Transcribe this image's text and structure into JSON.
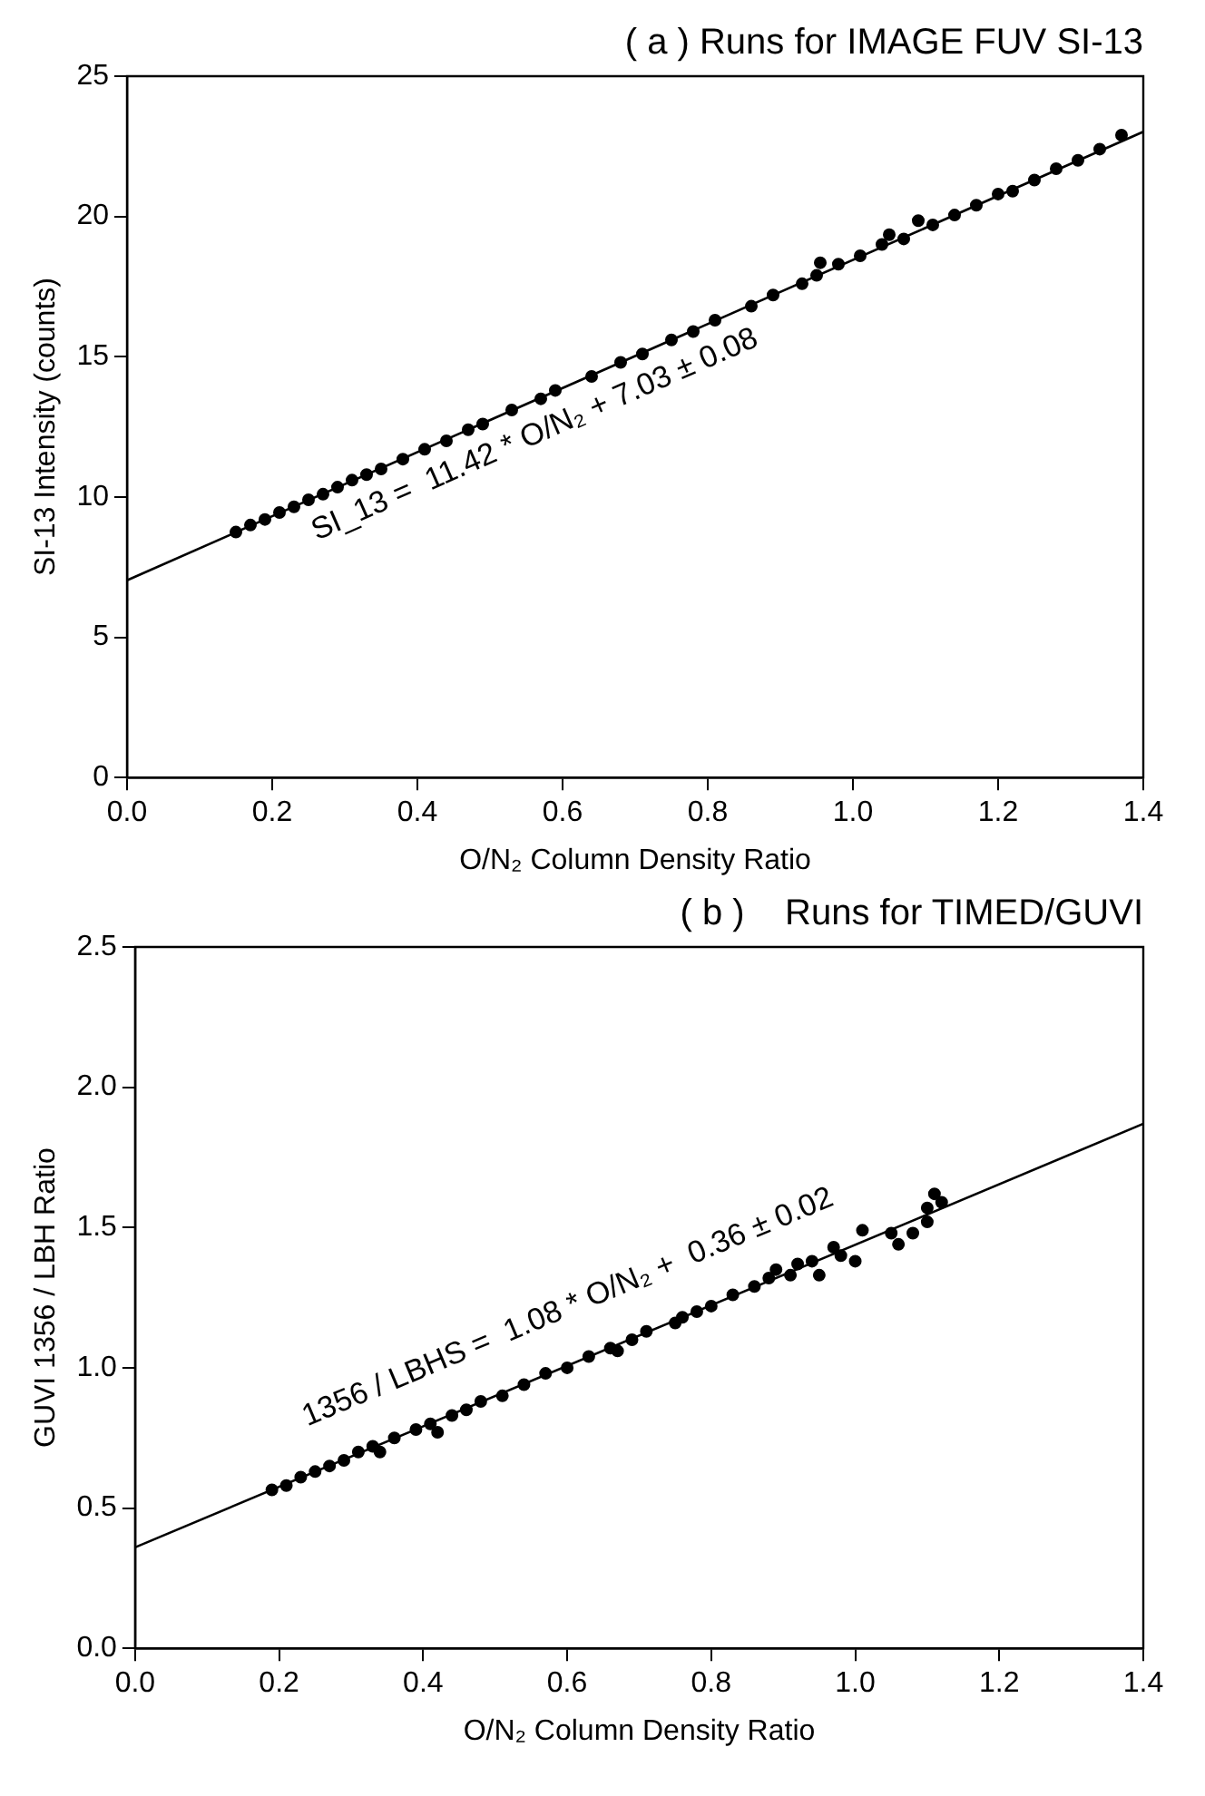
{
  "chart_data": [
    {
      "type": "scatter",
      "title": "( a ) Runs for IMAGE FUV SI-13",
      "xlabel": "O/N₂ Column Density Ratio",
      "ylabel": "SI-13 Intensity (counts)",
      "xlim": [
        0,
        1.4
      ],
      "xticks": [
        {
          "value": 0,
          "label": "0.0"
        },
        {
          "value": 0.2,
          "label": "0.2"
        },
        {
          "value": 0.4,
          "label": "0.4"
        },
        {
          "value": 0.6,
          "label": "0.6"
        },
        {
          "value": 0.8,
          "label": "0.8"
        },
        {
          "value": 1.0,
          "label": "1.0"
        },
        {
          "value": 1.2,
          "label": "1.2"
        },
        {
          "value": 1.4,
          "label": "1.4"
        }
      ],
      "ylim": [
        0,
        25
      ],
      "yticks": [
        0,
        5,
        10,
        15,
        20,
        25
      ],
      "grid": false,
      "legend": false,
      "marker": "circle",
      "annotations": [
        "SI_13 =  11.42 * O/N₂ + 7.03 ± 0.08"
      ],
      "series": [
        {
          "type": "scatter",
          "color": "#000000",
          "x": [
            0.15,
            0.17,
            0.19,
            0.21,
            0.23,
            0.25,
            0.27,
            0.29,
            0.31,
            0.33,
            0.35,
            0.38,
            0.41,
            0.44,
            0.47,
            0.49,
            0.53,
            0.57,
            0.59,
            0.64,
            0.68,
            0.71,
            0.75,
            0.78,
            0.81,
            0.86,
            0.89,
            0.93,
            0.95,
            0.955,
            0.98,
            1.01,
            1.04,
            1.05,
            1.07,
            1.09,
            1.11,
            1.14,
            1.17,
            1.2,
            1.22,
            1.25,
            1.28,
            1.31,
            1.34,
            1.37
          ],
          "values": [
            8.75,
            9.0,
            9.2,
            9.45,
            9.65,
            9.9,
            10.1,
            10.35,
            10.6,
            10.8,
            11.0,
            11.35,
            11.7,
            12.0,
            12.4,
            12.6,
            13.1,
            13.5,
            13.8,
            14.3,
            14.8,
            15.1,
            15.6,
            15.9,
            16.3,
            16.8,
            17.2,
            17.6,
            17.9,
            18.35,
            18.3,
            18.6,
            19.0,
            19.35,
            19.2,
            19.85,
            19.7,
            20.05,
            20.4,
            20.8,
            20.9,
            21.3,
            21.7,
            22.0,
            22.4,
            22.9
          ]
        },
        {
          "type": "line",
          "color": "#000000",
          "marker": "none",
          "line_style": "solid",
          "x": [
            0,
            1.4
          ],
          "values": [
            7.03,
            23.02
          ]
        }
      ]
    },
    {
      "type": "scatter",
      "title": "( b )    Runs for TIMED/GUVI",
      "xlabel": "O/N₂ Column Density Ratio",
      "ylabel": "GUVI 1356 / LBH Ratio",
      "xlim": [
        0,
        1.4
      ],
      "xticks": [
        {
          "value": 0,
          "label": "0.0"
        },
        {
          "value": 0.2,
          "label": "0.2"
        },
        {
          "value": 0.4,
          "label": "0.4"
        },
        {
          "value": 0.6,
          "label": "0.6"
        },
        {
          "value": 0.8,
          "label": "0.8"
        },
        {
          "value": 1.0,
          "label": "1.0"
        },
        {
          "value": 1.2,
          "label": "1.2"
        },
        {
          "value": 1.4,
          "label": "1.4"
        }
      ],
      "ylim": [
        0,
        2.5
      ],
      "yticks": [
        {
          "value": 0,
          "label": "0.0"
        },
        {
          "value": 0.5,
          "label": "0.5"
        },
        {
          "value": 1.0,
          "label": "1.0"
        },
        {
          "value": 1.5,
          "label": "1.5"
        },
        {
          "value": 2.0,
          "label": "2.0"
        },
        {
          "value": 2.5,
          "label": "2.5"
        }
      ],
      "grid": false,
      "legend": false,
      "marker": "circle",
      "annotations": [
        "1356 / LBHS =  1.08 * O/N₂ +  0.36 ± 0.02"
      ],
      "series": [
        {
          "type": "scatter",
          "color": "#000000",
          "x": [
            0.19,
            0.21,
            0.23,
            0.25,
            0.27,
            0.29,
            0.31,
            0.33,
            0.34,
            0.36,
            0.39,
            0.41,
            0.42,
            0.44,
            0.46,
            0.48,
            0.51,
            0.54,
            0.57,
            0.6,
            0.63,
            0.66,
            0.67,
            0.69,
            0.71,
            0.75,
            0.76,
            0.78,
            0.8,
            0.83,
            0.86,
            0.88,
            0.89,
            0.91,
            0.92,
            0.94,
            0.95,
            0.97,
            0.98,
            1.0,
            1.01,
            1.05,
            1.06,
            1.08,
            1.1,
            1.11,
            1.12,
            1.1
          ],
          "values": [
            0.565,
            0.58,
            0.61,
            0.63,
            0.65,
            0.67,
            0.7,
            0.72,
            0.7,
            0.75,
            0.78,
            0.8,
            0.77,
            0.83,
            0.85,
            0.88,
            0.9,
            0.94,
            0.98,
            1.0,
            1.04,
            1.07,
            1.06,
            1.1,
            1.13,
            1.16,
            1.18,
            1.2,
            1.22,
            1.26,
            1.29,
            1.32,
            1.35,
            1.33,
            1.37,
            1.38,
            1.33,
            1.43,
            1.4,
            1.38,
            1.49,
            1.48,
            1.44,
            1.48,
            1.57,
            1.62,
            1.59,
            1.52
          ]
        },
        {
          "type": "line",
          "color": "#000000",
          "marker": "none",
          "line_style": "solid",
          "x": [
            0,
            1.4
          ],
          "values": [
            0.36,
            1.87
          ]
        }
      ]
    }
  ]
}
